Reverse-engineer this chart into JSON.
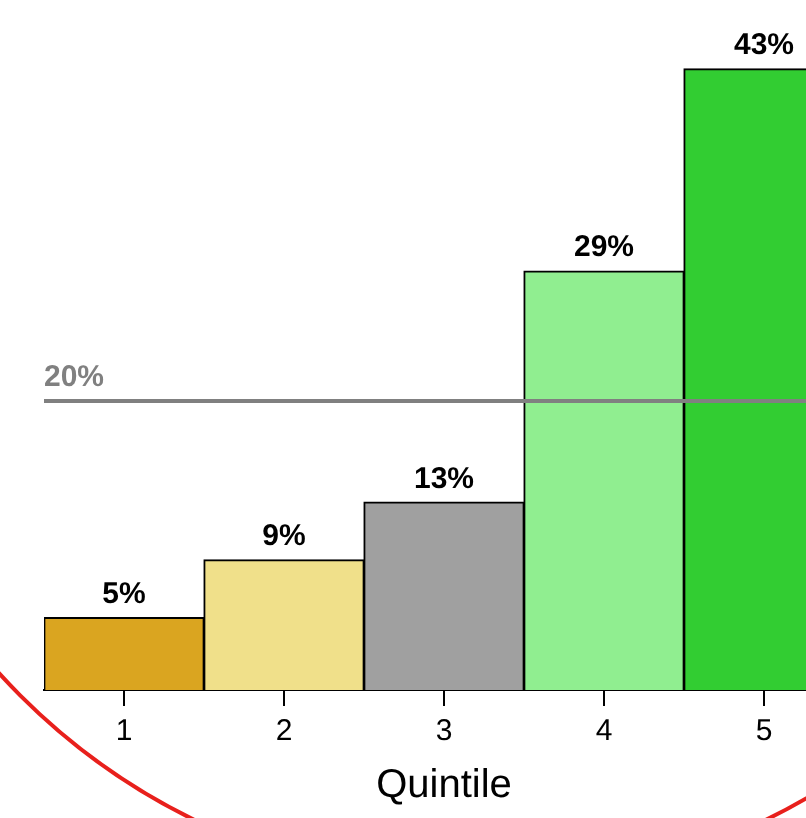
{
  "chart_data": {
    "type": "bar",
    "xlabel": "Quintile",
    "categories": [
      "1",
      "2",
      "3",
      "4",
      "5"
    ],
    "values": [
      5,
      9,
      13,
      29,
      43
    ],
    "colors": [
      "#daa520",
      "#f0e08a",
      "#a0a0a0",
      "#90ee90",
      "#32cd32"
    ],
    "value_labels": [
      "5%",
      "9%",
      "13%",
      "29%",
      "43%"
    ],
    "ref_lines": [
      {
        "axis": "y",
        "value": 20,
        "label": "20%",
        "color": "#808080"
      }
    ],
    "grid": false,
    "legend": false
  }
}
